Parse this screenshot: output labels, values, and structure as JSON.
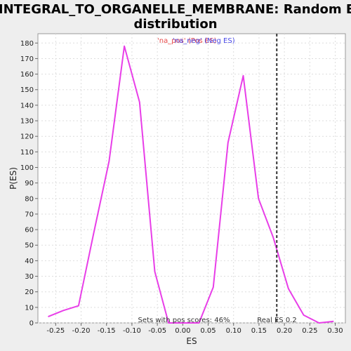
{
  "chart_data": {
    "type": "line",
    "title_line1": "INTEGRAL_TO_ORGANELLE_MEMBRANE: Random ES",
    "title_line2": "distribution",
    "xlabel": "ES",
    "ylabel": "P(ES)",
    "xlim": [
      -0.285,
      0.32
    ],
    "ylim": [
      0,
      186
    ],
    "x_ticks": [
      -0.25,
      -0.2,
      -0.15,
      -0.1,
      -0.05,
      0.0,
      0.05,
      0.1,
      0.15,
      0.2,
      0.25,
      0.3
    ],
    "x_tick_labels": [
      "-0.25",
      "-0.20",
      "-0.15",
      "-0.10",
      "-0.05",
      "0.00",
      "0.05",
      "0.10",
      "0.15",
      "0.20",
      "0.25",
      "0.30"
    ],
    "y_ticks": [
      0,
      10,
      20,
      30,
      40,
      50,
      60,
      70,
      80,
      90,
      100,
      110,
      120,
      130,
      140,
      150,
      160,
      170,
      180
    ],
    "y_tick_labels": [
      "0",
      "10",
      "20",
      "30",
      "40",
      "50",
      "60",
      "70",
      "80",
      "90",
      "100",
      "110",
      "120",
      "130",
      "140",
      "150",
      "160",
      "170",
      "180"
    ],
    "grid": true,
    "series": [
      {
        "color": "#e83ee8",
        "x": [
          -0.265,
          -0.235,
          -0.205,
          -0.175,
          -0.145,
          -0.115,
          -0.085,
          -0.055,
          -0.028,
          0.002,
          0.032,
          0.06,
          0.089,
          0.119,
          0.149,
          0.178,
          0.208,
          0.238,
          0.268,
          0.297
        ],
        "y": [
          4,
          8,
          11,
          58,
          104,
          178,
          142,
          33,
          0,
          0,
          0,
          23,
          116,
          159,
          80,
          55,
          22,
          5,
          0,
          1
        ]
      }
    ],
    "legend": {
      "placement": "top-center",
      "entries": [
        {
          "text": "'na_pos' (Pos ES)",
          "color": "#e84a4a"
        },
        {
          "text": "'na_neg' (Neg ES)",
          "color": "#4a4ae8"
        }
      ]
    },
    "real_es": {
      "x": 0.185,
      "label": "Real ES 0.2"
    },
    "footer_text": "Sets with pos scores: 46%"
  }
}
